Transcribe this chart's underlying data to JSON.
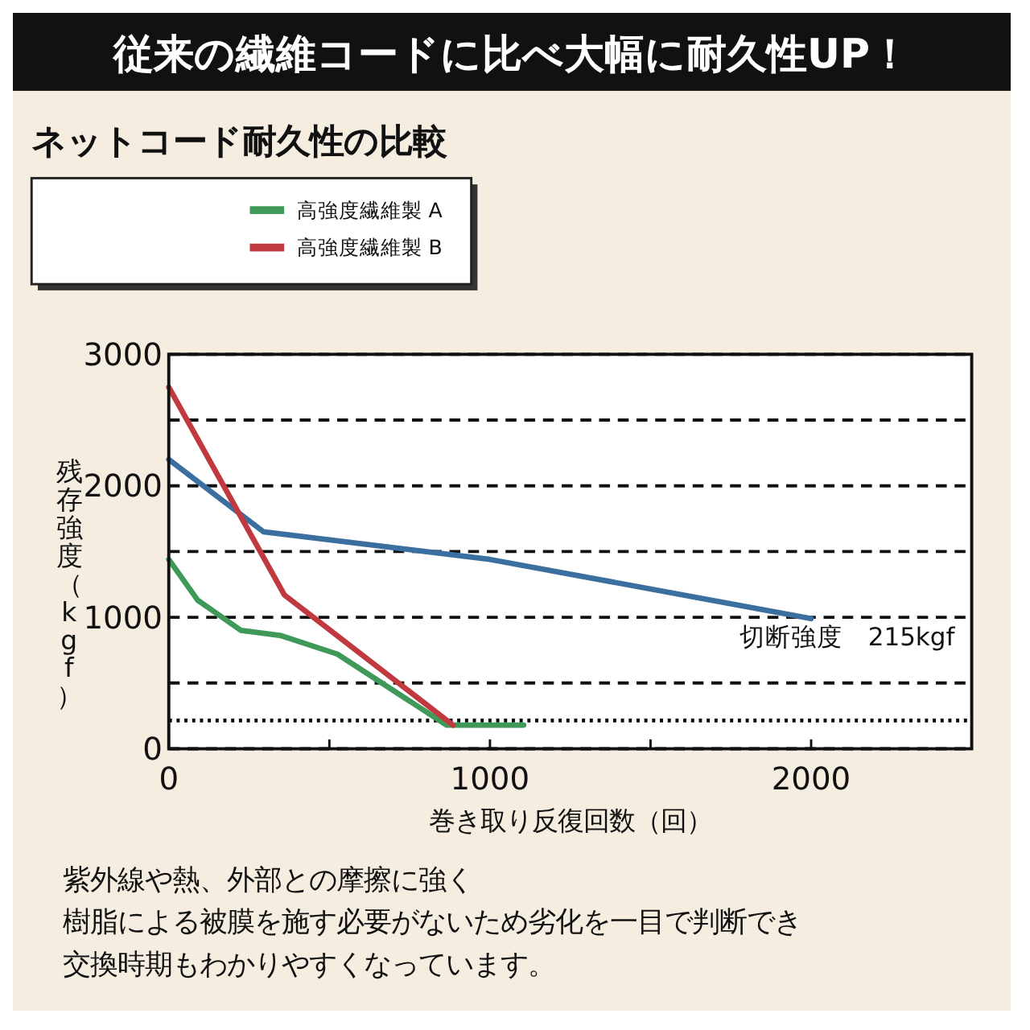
{
  "chart_data": {
    "type": "line",
    "title": "従来の繊維コードに比べ大幅に耐久性UP！",
    "subtitle": "ネットコード耐久性の比較",
    "xlabel": "巻き取り反復回数（回）",
    "ylabel": "残存強度（kgf）",
    "xlim": [
      0,
      2500
    ],
    "ylim": [
      0,
      3000
    ],
    "xticks": [
      0,
      {
        "value": 500,
        "label": null
      },
      1000,
      {
        "value": 1500,
        "label": null
      },
      2000
    ],
    "yticks": [
      0,
      {
        "value": 500,
        "label": null
      },
      1000,
      {
        "value": 1500,
        "label": null
      },
      2000,
      {
        "value": 2500,
        "label": null
      },
      3000
    ],
    "grid": "y",
    "legend": "top left",
    "line_style": "solid",
    "marker": "none",
    "series": [
      {
        "color": "#3a6fa0",
        "x": [
          0,
          295,
          1000,
          2000
        ],
        "values": [
          2200,
          1650,
          1440,
          990
        ]
      },
      {
        "name": "高強度繊維製 A",
        "color": "#3f9a5a",
        "x": [
          0,
          90,
          225,
          350,
          525,
          865,
          1105
        ],
        "values": [
          1440,
          1130,
          900,
          860,
          720,
          180,
          180
        ]
      },
      {
        "name": "高強度繊維製 B",
        "color": "#c0393f",
        "x": [
          0,
          360,
          885
        ],
        "values": [
          2750,
          1170,
          180
        ]
      }
    ],
    "ref_lines": [
      {
        "axis": "y",
        "value": 215,
        "label": "切断強度　215kgf",
        "line_style": "dotted",
        "color": "#000000"
      }
    ],
    "annotations": [
      "紫外線や熱、外部との摩擦に強く",
      "樹脂による被膜を施す必要がないため劣化を一目で判断でき",
      "交換時期もわかりやすくなっています。"
    ]
  }
}
